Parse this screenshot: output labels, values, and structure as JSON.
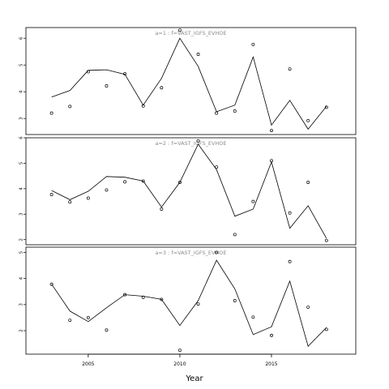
{
  "chart_data": [
    {
      "type": "line",
      "title": "a=1 : f=VAST_IGFS_EVHOE",
      "ylim": [
        2.4,
        6.4
      ],
      "yticks": [
        3,
        4,
        5,
        6
      ],
      "x": [
        2003,
        2004,
        2005,
        2006,
        2007,
        2008,
        2009,
        2010,
        2011,
        2012,
        2013,
        2014,
        2015,
        2016,
        2017,
        2018
      ],
      "series": [
        {
          "kind": "line",
          "values": [
            3.8,
            4.05,
            4.8,
            4.82,
            4.65,
            3.5,
            4.5,
            6.0,
            4.95,
            3.25,
            3.5,
            5.3,
            2.75,
            3.68,
            2.6,
            3.45
          ]
        },
        {
          "kind": "points",
          "values": [
            3.2,
            3.45,
            4.75,
            4.22,
            4.67,
            3.47,
            4.15,
            6.3,
            5.4,
            3.2,
            3.28,
            5.77,
            2.55,
            4.85,
            2.92,
            3.42
          ]
        }
      ]
    },
    {
      "type": "line",
      "title": "a=2 : f=VAST_IGFS_EVHOE",
      "ylim": [
        1.8,
        6.0
      ],
      "yticks": [
        2,
        3,
        4,
        5,
        6
      ],
      "x": [
        2003,
        2004,
        2005,
        2006,
        2007,
        2008,
        2009,
        2010,
        2011,
        2012,
        2013,
        2014,
        2015,
        2016,
        2017,
        2018
      ],
      "series": [
        {
          "kind": "line",
          "values": [
            3.93,
            3.57,
            3.9,
            4.48,
            4.45,
            4.3,
            3.28,
            4.25,
            5.75,
            4.75,
            2.92,
            3.2,
            5.05,
            2.45,
            3.33,
            2.05
          ]
        },
        {
          "kind": "points",
          "values": [
            3.77,
            3.48,
            3.63,
            3.95,
            4.27,
            4.3,
            3.2,
            4.25,
            5.88,
            4.85,
            2.2,
            3.5,
            5.1,
            3.05,
            4.25,
            1.97
          ]
        }
      ]
    },
    {
      "type": "line",
      "title": "a=3 : f=VAST_IGFS_EVHOE",
      "ylim": [
        1.1,
        5.2
      ],
      "yticks": [
        2,
        3,
        4,
        5
      ],
      "x": [
        2003,
        2004,
        2005,
        2006,
        2007,
        2008,
        2009,
        2010,
        2011,
        2012,
        2013,
        2014,
        2015,
        2016,
        2017,
        2018
      ],
      "series": [
        {
          "kind": "line",
          "values": [
            3.78,
            2.75,
            2.35,
            2.88,
            3.38,
            3.32,
            3.2,
            2.2,
            3.15,
            4.7,
            3.6,
            1.85,
            2.15,
            3.9,
            1.4,
            2.12
          ]
        },
        {
          "kind": "points",
          "values": [
            3.78,
            2.4,
            2.5,
            2.02,
            3.38,
            3.28,
            3.2,
            1.25,
            3.02,
            5.0,
            3.15,
            2.52,
            1.82,
            4.65,
            2.9,
            2.05
          ]
        }
      ]
    }
  ],
  "xaxis": {
    "label": "Year",
    "ticks": [
      2005,
      2010,
      2015
    ],
    "range": [
      2001.6,
      2019.6
    ]
  }
}
